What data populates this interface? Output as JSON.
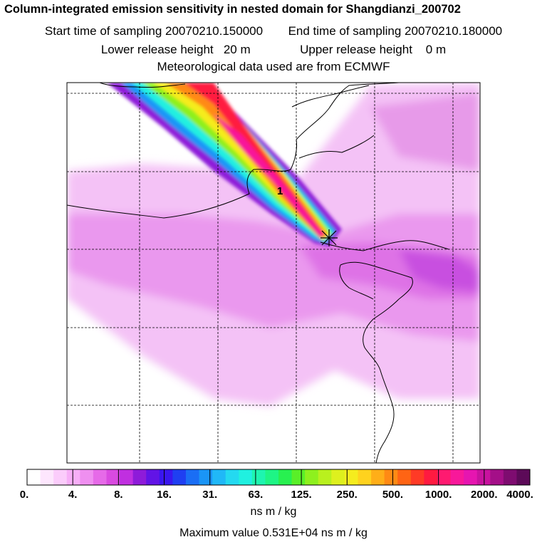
{
  "header": {
    "title": "Column-integrated emission sensitivity in nested domain for Shangdianzi_200702",
    "start_time": "Start time of sampling 20070210.150000",
    "end_time": "End time of sampling 20070210.180000",
    "lower_release": "Lower release height   20 m",
    "upper_release": "Upper release height    0 m",
    "met_data": "Meteorological data used are from ECMWF"
  },
  "map": {
    "release_marker_label": "1"
  },
  "colorbar": {
    "tick_labels": [
      "0.",
      "4.",
      "8.",
      "16.",
      "31.",
      "63.",
      "125.",
      "250.",
      "500.",
      "1000.",
      "2000.",
      "4000."
    ],
    "colors": [
      "#ffffff",
      "#fde6fd",
      "#fbccfb",
      "#f7aef7",
      "#ef8ff0",
      "#e66ae8",
      "#d94ae0",
      "#c02fe0",
      "#8e1bd9",
      "#6214e6",
      "#3a16ef",
      "#1f3ff2",
      "#1a6ef5",
      "#1a95f7",
      "#20b8f7",
      "#24d9f0",
      "#20f0e0",
      "#1ef5b0",
      "#1ef585",
      "#28f050",
      "#59ef28",
      "#8ef01e",
      "#b9f01e",
      "#def01e",
      "#f5ec1e",
      "#ffd21e",
      "#ffae18",
      "#ff8a14",
      "#ff6414",
      "#ff3a26",
      "#ff1a40",
      "#ff1a70",
      "#f8189a",
      "#e615b0",
      "#c8129e",
      "#a40f88",
      "#7e0c70",
      "#5c0a58"
    ],
    "units": "ns m / kg"
  },
  "footer": {
    "max_value": "Maximum value  0.531E+04 ns m / kg"
  }
}
